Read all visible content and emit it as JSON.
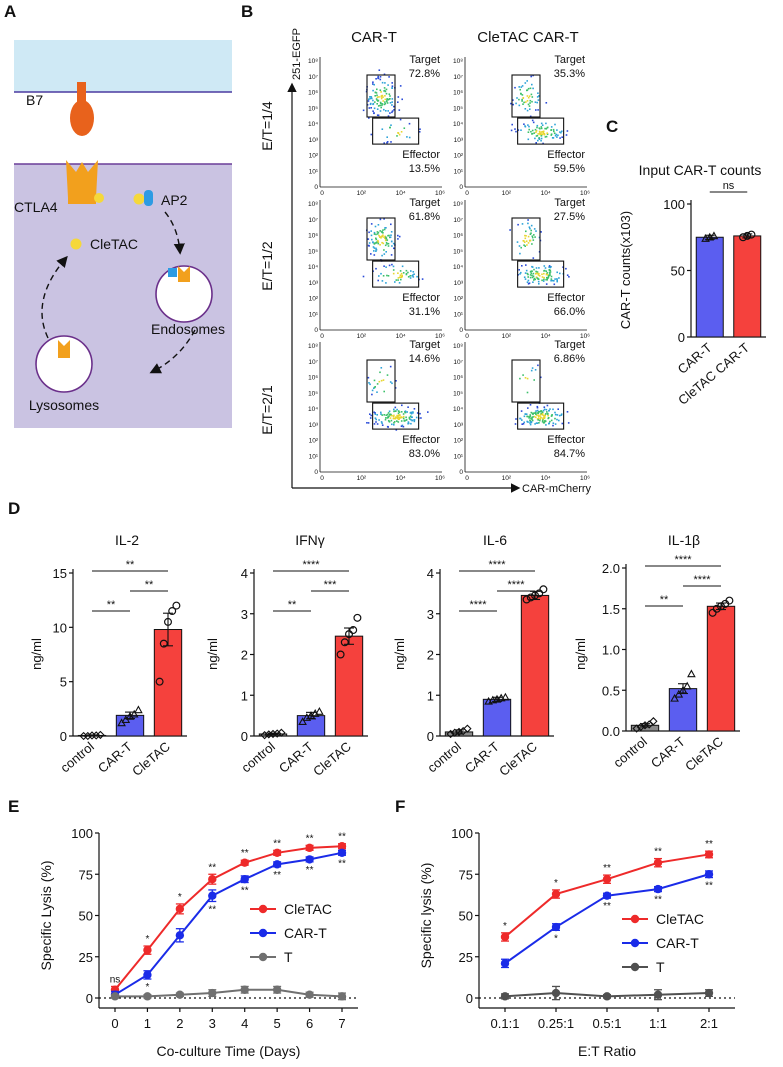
{
  "panels": {
    "a": {
      "letter": "A",
      "labels": {
        "b7": "B7",
        "ctla4": "CTLA4",
        "ap2": "AP2",
        "cletac": "CleTAC",
        "endosomes": "Endosomes",
        "lysosomes": "Lysosomes"
      },
      "colors": {
        "outer": "#cfe9f5",
        "cell": "#cac3e2",
        "b7": "#e8621c",
        "ctla4": "#f2a01d",
        "cletac": "#f5d83a",
        "ap2": "#2d9be3"
      }
    },
    "b": {
      "letter": "B",
      "column_titles": [
        "CAR-T",
        "CleTAC CAR-T"
      ],
      "row_titles": [
        "E/T=1/4",
        "E/T=1/2",
        "E/T=2/1"
      ],
      "y_axis_label": "251-EGFP",
      "x_axis_label": "CAR-mCherry",
      "x_ticks": [
        "0",
        "10²",
        "10⁴",
        "10⁶"
      ],
      "y_ticks": [
        "10⁸",
        "10⁷",
        "10⁶",
        "10⁵",
        "10⁴",
        "10³",
        "10²",
        "10¹",
        "0"
      ],
      "gate_target": "Target",
      "gate_effector": "Effector",
      "plots": [
        {
          "row": 0,
          "col": 0,
          "target": "72.8%",
          "effector": "13.5%"
        },
        {
          "row": 0,
          "col": 1,
          "target": "35.3%",
          "effector": "59.5%"
        },
        {
          "row": 1,
          "col": 0,
          "target": "61.8%",
          "effector": "31.1%"
        },
        {
          "row": 1,
          "col": 1,
          "target": "27.5%",
          "effector": "66.0%"
        },
        {
          "row": 2,
          "col": 0,
          "target": "14.6%",
          "effector": "83.0%"
        },
        {
          "row": 2,
          "col": 1,
          "target": "6.86%",
          "effector": "84.7%"
        }
      ]
    },
    "c": {
      "letter": "C"
    },
    "d": {
      "letter": "D"
    },
    "e": {
      "letter": "E"
    },
    "f": {
      "letter": "F"
    }
  },
  "chart_data": [
    {
      "id": "C",
      "type": "bar",
      "title": "Input CAR-T counts",
      "ylabel": "CAR-T counts(x103)",
      "categories": [
        "CAR-T",
        "CleTAC CAR-T"
      ],
      "values": [
        75,
        76
      ],
      "errors": [
        1.5,
        1.5
      ],
      "points": [
        [
          74,
          75,
          76
        ],
        [
          75,
          76,
          77
        ]
      ],
      "colors": [
        "#5b5ef0",
        "#f5413d"
      ],
      "ylim": [
        0,
        100
      ],
      "yticks": [
        "0",
        "50",
        "100"
      ],
      "ytick_values": [
        0,
        50,
        100
      ],
      "significance": [
        {
          "from": 0,
          "to": 1,
          "label": "ns"
        }
      ]
    },
    {
      "id": "D-IL2",
      "type": "bar",
      "title": "IL-2",
      "ylabel": "ng/ml",
      "categories": [
        "control",
        "CAR-T",
        "CleTAC"
      ],
      "values": [
        0.05,
        1.9,
        9.8
      ],
      "errors": [
        0.05,
        0.3,
        1.5
      ],
      "points": [
        [
          0,
          0,
          0.05,
          0.05,
          0.1
        ],
        [
          1.2,
          1.5,
          1.8,
          2.0,
          2.4
        ],
        [
          5.0,
          8.5,
          10.5,
          11.5,
          12.0
        ]
      ],
      "colors": [
        "#8a8a8a",
        "#5b5ef0",
        "#f5413d"
      ],
      "ylim": [
        0,
        15
      ],
      "yticks": [
        "0",
        "5",
        "10",
        "15"
      ],
      "ytick_values": [
        0,
        5,
        10,
        15
      ],
      "significance": [
        {
          "from": 0,
          "to": 2,
          "label": "**",
          "level": 1
        },
        {
          "from": 1,
          "to": 2,
          "label": "**",
          "level": 2
        },
        {
          "from": 0,
          "to": 1,
          "label": "**",
          "level": 3
        }
      ]
    },
    {
      "id": "D-IFNg",
      "type": "bar",
      "title": "IFNγ",
      "ylabel": "ng/ml",
      "categories": [
        "control",
        "CAR-T",
        "CleTAC"
      ],
      "values": [
        0.05,
        0.5,
        2.45
      ],
      "errors": [
        0.02,
        0.08,
        0.2
      ],
      "points": [
        [
          0.02,
          0.04,
          0.05,
          0.06,
          0.08
        ],
        [
          0.35,
          0.45,
          0.5,
          0.55,
          0.6
        ],
        [
          2.0,
          2.3,
          2.5,
          2.6,
          2.9
        ]
      ],
      "colors": [
        "#8a8a8a",
        "#5b5ef0",
        "#f5413d"
      ],
      "ylim": [
        0,
        4
      ],
      "yticks": [
        "0",
        "1",
        "2",
        "3",
        "4"
      ],
      "ytick_values": [
        0,
        1,
        2,
        3,
        4
      ],
      "significance": [
        {
          "from": 0,
          "to": 2,
          "label": "****",
          "level": 1
        },
        {
          "from": 1,
          "to": 2,
          "label": "***",
          "level": 2
        },
        {
          "from": 0,
          "to": 1,
          "label": "**",
          "level": 3
        }
      ]
    },
    {
      "id": "D-IL6",
      "type": "bar",
      "title": "IL-6",
      "ylabel": "ng/ml",
      "categories": [
        "control",
        "CAR-T",
        "CleTAC"
      ],
      "values": [
        0.1,
        0.9,
        3.45
      ],
      "errors": [
        0.05,
        0.05,
        0.1
      ],
      "points": [
        [
          0.05,
          0.08,
          0.1,
          0.12,
          0.18
        ],
        [
          0.85,
          0.88,
          0.9,
          0.93,
          0.95
        ],
        [
          3.35,
          3.4,
          3.45,
          3.5,
          3.6
        ]
      ],
      "colors": [
        "#8a8a8a",
        "#5b5ef0",
        "#f5413d"
      ],
      "ylim": [
        0,
        4
      ],
      "yticks": [
        "0",
        "1",
        "2",
        "3",
        "4"
      ],
      "ytick_values": [
        0,
        1,
        2,
        3,
        4
      ],
      "significance": [
        {
          "from": 0,
          "to": 2,
          "label": "****",
          "level": 1
        },
        {
          "from": 1,
          "to": 2,
          "label": "****",
          "level": 2
        },
        {
          "from": 0,
          "to": 1,
          "label": "****",
          "level": 3
        }
      ]
    },
    {
      "id": "D-IL1b",
      "type": "bar",
      "title": "IL-1β",
      "ylabel": "ng/ml",
      "categories": [
        "control",
        "CAR-T",
        "CleTAC"
      ],
      "values": [
        0.07,
        0.52,
        1.53
      ],
      "errors": [
        0.02,
        0.06,
        0.04
      ],
      "points": [
        [
          0.03,
          0.05,
          0.07,
          0.08,
          0.12
        ],
        [
          0.4,
          0.45,
          0.5,
          0.55,
          0.7
        ],
        [
          1.45,
          1.5,
          1.53,
          1.56,
          1.6
        ]
      ],
      "colors": [
        "#8a8a8a",
        "#5b5ef0",
        "#f5413d"
      ],
      "ylim": [
        0,
        2
      ],
      "yticks": [
        "0.0",
        "0.5",
        "1.0",
        "1.5",
        "2.0"
      ],
      "ytick_values": [
        0,
        0.5,
        1,
        1.5,
        2
      ],
      "significance": [
        {
          "from": 0,
          "to": 2,
          "label": "****",
          "level": 1
        },
        {
          "from": 1,
          "to": 2,
          "label": "****",
          "level": 2
        },
        {
          "from": 0,
          "to": 1,
          "label": "**",
          "level": 3
        }
      ]
    },
    {
      "id": "E",
      "type": "line",
      "xlabel": "Co-culture Time (Days)",
      "ylabel": "Specific Lysis (%)",
      "x": [
        0,
        1,
        2,
        3,
        4,
        5,
        6,
        7
      ],
      "xticks": [
        "0",
        "1",
        "2",
        "3",
        "4",
        "5",
        "6",
        "7"
      ],
      "ylim": [
        0,
        100
      ],
      "yticks": [
        "0",
        "25",
        "50",
        "75",
        "100"
      ],
      "ytick_values": [
        0,
        25,
        50,
        75,
        100
      ],
      "legend": "right",
      "series": [
        {
          "name": "CleTAC",
          "color": "#ee2a2a",
          "values": [
            5,
            29,
            54,
            72,
            82,
            88,
            91,
            92
          ],
          "errors": [
            2,
            2.5,
            3,
            3,
            1.5,
            1.5,
            1.5,
            1.5
          ],
          "marks": [
            "ns",
            "*",
            "*",
            "**",
            "**",
            "**",
            "**",
            "**"
          ]
        },
        {
          "name": "CAR-T",
          "color": "#1a2be8",
          "values": [
            2,
            14,
            38,
            62,
            72,
            81,
            84,
            88
          ],
          "errors": [
            2,
            2.5,
            4,
            3.5,
            2,
            1.5,
            1.5,
            1.5
          ],
          "marks": [
            "",
            "*",
            "",
            "**",
            "**",
            "**",
            "**",
            "**"
          ]
        },
        {
          "name": "T",
          "color": "#707070",
          "values": [
            1,
            1,
            2,
            3,
            5,
            5,
            2,
            1
          ],
          "errors": [
            1,
            1,
            1,
            2,
            2,
            2,
            1.5,
            2
          ]
        }
      ]
    },
    {
      "id": "F",
      "type": "line",
      "xlabel": "E:T Ratio",
      "ylabel": "Specific lysis (%)",
      "categories": [
        "0.1:1",
        "0.25:1",
        "0.5:1",
        "1:1",
        "2:1"
      ],
      "ylim": [
        0,
        100
      ],
      "yticks": [
        "0",
        "25",
        "50",
        "75",
        "100"
      ],
      "ytick_values": [
        0,
        25,
        50,
        75,
        100
      ],
      "legend": "right",
      "series": [
        {
          "name": "CleTAC",
          "color": "#ee2a2a",
          "values": [
            37,
            63,
            72,
            82,
            87
          ],
          "errors": [
            2.5,
            2.5,
            2.5,
            2.5,
            2
          ],
          "marks": [
            "*",
            "*",
            "**",
            "**",
            "**"
          ]
        },
        {
          "name": "CAR-T",
          "color": "#1a2be8",
          "values": [
            21,
            43,
            62,
            66,
            75
          ],
          "errors": [
            2.5,
            2,
            1.5,
            1.5,
            2
          ],
          "marks": [
            "",
            "*",
            "**",
            "**",
            "**"
          ]
        },
        {
          "name": "T",
          "color": "#505050",
          "values": [
            1,
            3,
            1,
            2,
            3
          ],
          "errors": [
            1.5,
            4,
            1,
            3,
            2
          ]
        }
      ]
    }
  ]
}
